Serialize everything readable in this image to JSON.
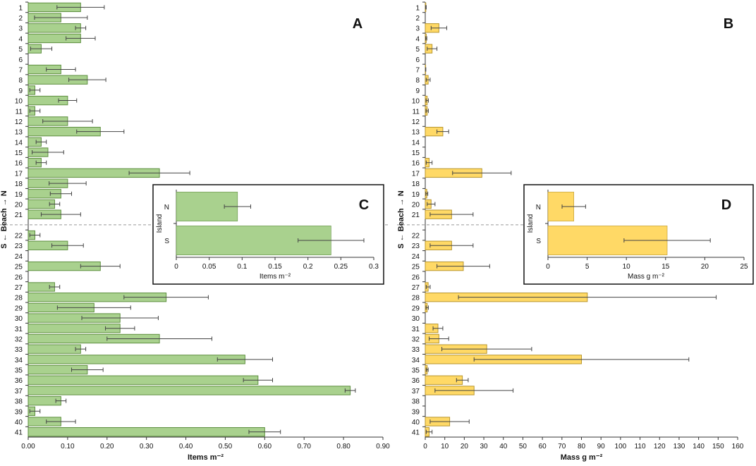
{
  "figure": {
    "y_axis_label": "S ← Beach → N"
  },
  "chart_data": [
    {
      "type": "bar",
      "orientation": "horizontal",
      "panel_label": "A",
      "xlabel": "Items m⁻²",
      "ylabel": "S ← Beach → N",
      "xlim": [
        0,
        0.9
      ],
      "x_ticks": [
        "0.00",
        "0.10",
        "0.20",
        "0.30",
        "0.40",
        "0.50",
        "0.60",
        "0.70",
        "0.80",
        "0.90"
      ],
      "categories": [
        "1",
        "2",
        "3",
        "4",
        "5",
        "6",
        "7",
        "8",
        "9",
        "10",
        "11",
        "12",
        "13",
        "14",
        "15",
        "16",
        "17",
        "18",
        "19",
        "20",
        "21",
        "22",
        "23",
        "24",
        "25",
        "26",
        "27",
        "28",
        "29",
        "30",
        "31",
        "32",
        "33",
        "34",
        "35",
        "36",
        "37",
        "38",
        "39",
        "40",
        "41"
      ],
      "values": [
        0.133,
        0.083,
        0.133,
        0.133,
        0.033,
        0,
        0.083,
        0.15,
        0.017,
        0.1,
        0.017,
        0.1,
        0.183,
        0.033,
        0.05,
        0.033,
        0.333,
        0.1,
        0.083,
        0.067,
        0.083,
        0.017,
        0.1,
        0,
        0.183,
        0,
        0.067,
        0.35,
        0.167,
        0.233,
        0.233,
        0.333,
        0.133,
        0.55,
        0.15,
        0.583,
        0.817,
        0.083,
        0.017,
        0.083,
        0.6
      ],
      "errors": [
        0.06,
        0.067,
        0.013,
        0.037,
        0.027,
        0,
        0.037,
        0.047,
        0.013,
        0.023,
        0.013,
        0.063,
        0.06,
        0.013,
        0.04,
        0.013,
        0.077,
        0.047,
        0.027,
        0.013,
        0.05,
        0.013,
        0.04,
        0,
        0.05,
        0,
        0.013,
        0.107,
        0.093,
        0.097,
        0.037,
        0.133,
        0.013,
        0.07,
        0.04,
        0.037,
        0.013,
        0.013,
        0.013,
        0.037,
        0.04
      ],
      "series_color": "#a9d18e",
      "divider_after_category": "21",
      "grid": false
    },
    {
      "type": "bar",
      "orientation": "horizontal",
      "panel_label": "B",
      "xlabel": "Mass g m⁻²",
      "ylabel": "S ← Beach → N",
      "xlim": [
        0,
        160
      ],
      "x_ticks": [
        "0",
        "10",
        "20",
        "30",
        "40",
        "50",
        "60",
        "70",
        "80",
        "90",
        "100",
        "110",
        "120",
        "130",
        "140",
        "150",
        "160"
      ],
      "categories": [
        "1",
        "2",
        "3",
        "4",
        "5",
        "6",
        "7",
        "8",
        "9",
        "10",
        "11",
        "12",
        "13",
        "14",
        "15",
        "16",
        "17",
        "18",
        "19",
        "20",
        "21",
        "22",
        "23",
        "24",
        "25",
        "26",
        "27",
        "28",
        "29",
        "30",
        "31",
        "32",
        "33",
        "34",
        "35",
        "36",
        "37",
        "38",
        "39",
        "40",
        "41"
      ],
      "values": [
        0.3,
        0,
        7,
        0.5,
        3.5,
        0,
        0.2,
        1.5,
        0,
        1,
        1,
        0,
        9,
        0,
        0,
        2,
        29,
        0,
        0.8,
        3,
        13.5,
        0,
        13.5,
        0,
        19.5,
        0,
        1.5,
        83,
        1,
        0,
        6.5,
        7,
        31.5,
        80,
        1,
        19,
        25,
        0,
        0,
        12.5,
        2
      ],
      "errors": [
        0.2,
        0,
        4,
        0.3,
        2.5,
        0,
        0.1,
        1,
        0,
        0.6,
        0.6,
        0,
        3,
        0,
        0,
        1.5,
        15,
        0,
        0.5,
        2,
        11,
        0,
        11,
        0,
        13.5,
        0,
        1,
        66,
        0.6,
        0,
        2.5,
        5,
        23,
        55,
        0.5,
        3,
        20,
        0,
        0,
        10,
        1.5
      ],
      "series_color": "#ffd966",
      "divider_after_category": "21",
      "grid": false
    },
    {
      "type": "bar",
      "orientation": "horizontal",
      "panel_label": "C",
      "xlabel": "Items m⁻²",
      "ylabel": "Island",
      "xlim": [
        0,
        0.3
      ],
      "x_ticks": [
        "0",
        "0.05",
        "0.1",
        "0.15",
        "0.2",
        "0.25",
        "0.3"
      ],
      "categories": [
        "N",
        "S"
      ],
      "values": [
        0.093,
        0.235
      ],
      "errors": [
        0.02,
        0.05
      ],
      "series_color": "#a9d18e",
      "legend": "inset"
    },
    {
      "type": "bar",
      "orientation": "horizontal",
      "panel_label": "D",
      "xlabel": "Mass g m⁻²",
      "ylabel": "Island",
      "xlim": [
        0,
        25
      ],
      "x_ticks": [
        "0",
        "5",
        "10",
        "15",
        "20",
        "25"
      ],
      "categories": [
        "N",
        "S"
      ],
      "values": [
        3.3,
        15.2
      ],
      "errors": [
        1.5,
        5.5
      ],
      "series_color": "#ffd966",
      "legend": "inset"
    }
  ]
}
